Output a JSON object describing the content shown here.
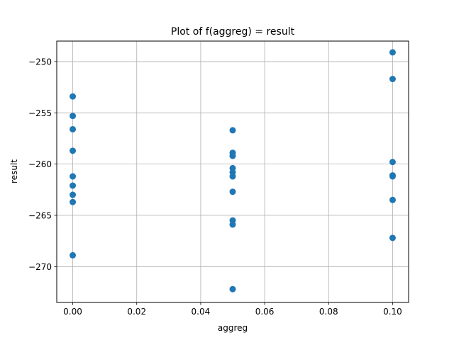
{
  "chart_data": {
    "type": "scatter",
    "title": "Plot of f(aggreg) = result",
    "xlabel": "aggreg",
    "ylabel": "result",
    "xlim": [
      -0.005,
      0.105
    ],
    "ylim": [
      -273.5,
      -248.0
    ],
    "xticks": [
      0.0,
      0.02,
      0.04,
      0.06,
      0.08,
      0.1
    ],
    "xtick_labels": [
      "0.00",
      "0.02",
      "0.04",
      "0.06",
      "0.08",
      "0.10"
    ],
    "yticks": [
      -270,
      -265,
      -260,
      -255,
      -250
    ],
    "ytick_labels": [
      "−270",
      "−265",
      "−260",
      "−255",
      "−250"
    ],
    "grid": true,
    "marker_color": "#1f77b4",
    "series": [
      {
        "points": [
          {
            "x": 0.0,
            "y": -253.4
          },
          {
            "x": 0.0,
            "y": -255.3
          },
          {
            "x": 0.0,
            "y": -256.6
          },
          {
            "x": 0.0,
            "y": -258.7
          },
          {
            "x": 0.0,
            "y": -261.2
          },
          {
            "x": 0.0,
            "y": -262.1
          },
          {
            "x": 0.0,
            "y": -263.0
          },
          {
            "x": 0.0,
            "y": -263.7
          },
          {
            "x": 0.0,
            "y": -268.9
          },
          {
            "x": 0.05,
            "y": -256.7
          },
          {
            "x": 0.05,
            "y": -258.9
          },
          {
            "x": 0.05,
            "y": -259.2
          },
          {
            "x": 0.05,
            "y": -260.4
          },
          {
            "x": 0.05,
            "y": -260.8
          },
          {
            "x": 0.05,
            "y": -261.2
          },
          {
            "x": 0.05,
            "y": -262.7
          },
          {
            "x": 0.05,
            "y": -265.5
          },
          {
            "x": 0.05,
            "y": -265.9
          },
          {
            "x": 0.05,
            "y": -272.2
          },
          {
            "x": 0.1,
            "y": -249.1
          },
          {
            "x": 0.1,
            "y": -251.7
          },
          {
            "x": 0.1,
            "y": -259.8
          },
          {
            "x": 0.1,
            "y": -261.1
          },
          {
            "x": 0.1,
            "y": -261.2
          },
          {
            "x": 0.1,
            "y": -263.5
          },
          {
            "x": 0.1,
            "y": -267.2
          }
        ]
      }
    ]
  }
}
